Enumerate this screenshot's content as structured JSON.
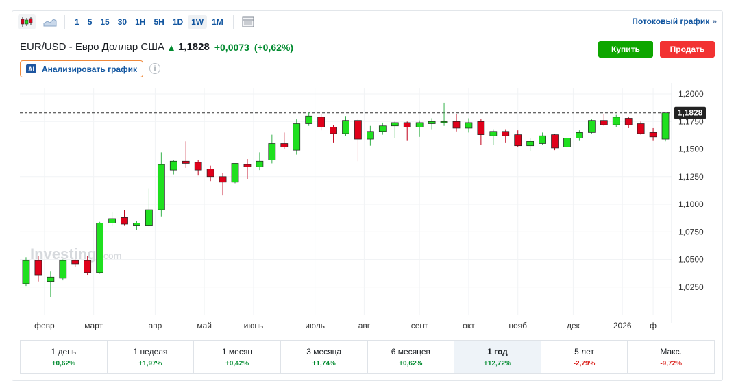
{
  "toolbar": {
    "timeframes": [
      "1",
      "5",
      "15",
      "30",
      "1H",
      "5H",
      "1D",
      "1W",
      "1M"
    ],
    "selected_timeframe": "1W",
    "stream_link": "Потоковый график",
    "stream_chevron": "»",
    "icons": [
      "candlestick-icon",
      "area-chart-icon",
      "table-icon"
    ]
  },
  "header": {
    "pair": "EUR/USD - Евро Доллар США",
    "price": "1,1828",
    "change": "+0,0073",
    "change_pct": "(+0,62%)",
    "buy_label": "Купить",
    "sell_label": "Продать",
    "ai_badge": "AI",
    "ai_label": "Анализировать график",
    "info_glyph": "i"
  },
  "colors": {
    "up": "#1fe01f",
    "down": "#e0001a",
    "up_text": "#008a2e",
    "down_text": "#d91e18",
    "link": "#1256a0",
    "buy": "#0ea600",
    "sell": "#f23232"
  },
  "chart_data": {
    "type": "candlestick",
    "watermark": "Investing",
    "watermark_suffix": ".com",
    "last_price_label": "1,1828",
    "last_price": 1.1828,
    "reference_line": 1.1755,
    "ylim": [
      1.0,
      1.205
    ],
    "y_ticks": [
      {
        "value": 1.2,
        "label": "1,2000"
      },
      {
        "value": 1.175,
        "label": "1,1750"
      },
      {
        "value": 1.15,
        "label": "1,1500"
      },
      {
        "value": 1.125,
        "label": "1,1250"
      },
      {
        "value": 1.1,
        "label": "1,1000"
      },
      {
        "value": 1.075,
        "label": "1,0750"
      },
      {
        "value": 1.05,
        "label": "1,0500"
      },
      {
        "value": 1.025,
        "label": "1,0250"
      }
    ],
    "x_ticks": [
      {
        "index": 1.5,
        "label": "февр"
      },
      {
        "index": 5.5,
        "label": "март"
      },
      {
        "index": 10.5,
        "label": "апр"
      },
      {
        "index": 14.5,
        "label": "май"
      },
      {
        "index": 18.5,
        "label": "июнь"
      },
      {
        "index": 23.5,
        "label": "июль"
      },
      {
        "index": 27.5,
        "label": "авг"
      },
      {
        "index": 32,
        "label": "сент"
      },
      {
        "index": 36,
        "label": "окт"
      },
      {
        "index": 40,
        "label": "нояб"
      },
      {
        "index": 44.5,
        "label": "дек"
      },
      {
        "index": 48.5,
        "label": "2026"
      },
      {
        "index": 51,
        "label": "ф"
      }
    ],
    "candles": [
      {
        "o": 1.028,
        "h": 1.052,
        "l": 1.026,
        "c": 1.049
      },
      {
        "o": 1.049,
        "h": 1.053,
        "l": 1.03,
        "c": 1.036
      },
      {
        "o": 1.03,
        "h": 1.039,
        "l": 1.016,
        "c": 1.034
      },
      {
        "o": 1.033,
        "h": 1.05,
        "l": 1.031,
        "c": 1.049
      },
      {
        "o": 1.049,
        "h": 1.05,
        "l": 1.043,
        "c": 1.046
      },
      {
        "o": 1.049,
        "h": 1.053,
        "l": 1.036,
        "c": 1.038
      },
      {
        "o": 1.038,
        "h": 1.084,
        "l": 1.037,
        "c": 1.083
      },
      {
        "o": 1.083,
        "h": 1.093,
        "l": 1.08,
        "c": 1.087
      },
      {
        "o": 1.088,
        "h": 1.095,
        "l": 1.081,
        "c": 1.082
      },
      {
        "o": 1.081,
        "h": 1.085,
        "l": 1.077,
        "c": 1.083
      },
      {
        "o": 1.081,
        "h": 1.114,
        "l": 1.08,
        "c": 1.095
      },
      {
        "o": 1.095,
        "h": 1.147,
        "l": 1.089,
        "c": 1.136
      },
      {
        "o": 1.131,
        "h": 1.14,
        "l": 1.127,
        "c": 1.139
      },
      {
        "o": 1.139,
        "h": 1.157,
        "l": 1.133,
        "c": 1.137
      },
      {
        "o": 1.138,
        "h": 1.14,
        "l": 1.126,
        "c": 1.131
      },
      {
        "o": 1.132,
        "h": 1.135,
        "l": 1.121,
        "c": 1.125
      },
      {
        "o": 1.125,
        "h": 1.128,
        "l": 1.108,
        "c": 1.12
      },
      {
        "o": 1.12,
        "h": 1.137,
        "l": 1.119,
        "c": 1.137
      },
      {
        "o": 1.136,
        "h": 1.141,
        "l": 1.123,
        "c": 1.134
      },
      {
        "o": 1.134,
        "h": 1.147,
        "l": 1.131,
        "c": 1.139
      },
      {
        "o": 1.14,
        "h": 1.163,
        "l": 1.137,
        "c": 1.155
      },
      {
        "o": 1.155,
        "h": 1.165,
        "l": 1.15,
        "c": 1.152
      },
      {
        "o": 1.149,
        "h": 1.177,
        "l": 1.145,
        "c": 1.173
      },
      {
        "o": 1.173,
        "h": 1.183,
        "l": 1.171,
        "c": 1.18
      },
      {
        "o": 1.179,
        "h": 1.182,
        "l": 1.167,
        "c": 1.17
      },
      {
        "o": 1.17,
        "h": 1.172,
        "l": 1.156,
        "c": 1.164
      },
      {
        "o": 1.164,
        "h": 1.18,
        "l": 1.162,
        "c": 1.176
      },
      {
        "o": 1.176,
        "h": 1.177,
        "l": 1.139,
        "c": 1.159
      },
      {
        "o": 1.159,
        "h": 1.171,
        "l": 1.153,
        "c": 1.166
      },
      {
        "o": 1.166,
        "h": 1.174,
        "l": 1.163,
        "c": 1.171
      },
      {
        "o": 1.171,
        "h": 1.175,
        "l": 1.16,
        "c": 1.174
      },
      {
        "o": 1.174,
        "h": 1.175,
        "l": 1.158,
        "c": 1.17
      },
      {
        "o": 1.17,
        "h": 1.176,
        "l": 1.161,
        "c": 1.174
      },
      {
        "o": 1.173,
        "h": 1.178,
        "l": 1.168,
        "c": 1.175
      },
      {
        "o": 1.174,
        "h": 1.192,
        "l": 1.171,
        "c": 1.175
      },
      {
        "o": 1.175,
        "h": 1.182,
        "l": 1.166,
        "c": 1.169
      },
      {
        "o": 1.169,
        "h": 1.178,
        "l": 1.165,
        "c": 1.174
      },
      {
        "o": 1.175,
        "h": 1.177,
        "l": 1.154,
        "c": 1.163
      },
      {
        "o": 1.162,
        "h": 1.168,
        "l": 1.154,
        "c": 1.166
      },
      {
        "o": 1.166,
        "h": 1.168,
        "l": 1.156,
        "c": 1.162
      },
      {
        "o": 1.163,
        "h": 1.167,
        "l": 1.152,
        "c": 1.153
      },
      {
        "o": 1.153,
        "h": 1.16,
        "l": 1.148,
        "c": 1.157
      },
      {
        "o": 1.155,
        "h": 1.165,
        "l": 1.154,
        "c": 1.162
      },
      {
        "o": 1.163,
        "h": 1.164,
        "l": 1.149,
        "c": 1.151
      },
      {
        "o": 1.152,
        "h": 1.161,
        "l": 1.151,
        "c": 1.16
      },
      {
        "o": 1.16,
        "h": 1.167,
        "l": 1.158,
        "c": 1.165
      },
      {
        "o": 1.165,
        "h": 1.177,
        "l": 1.164,
        "c": 1.176
      },
      {
        "o": 1.176,
        "h": 1.182,
        "l": 1.171,
        "c": 1.172
      },
      {
        "o": 1.172,
        "h": 1.181,
        "l": 1.17,
        "c": 1.179
      },
      {
        "o": 1.178,
        "h": 1.179,
        "l": 1.169,
        "c": 1.172
      },
      {
        "o": 1.173,
        "h": 1.175,
        "l": 1.163,
        "c": 1.164
      },
      {
        "o": 1.165,
        "h": 1.169,
        "l": 1.158,
        "c": 1.161
      },
      {
        "o": 1.159,
        "h": 1.183,
        "l": 1.157,
        "c": 1.1828
      }
    ]
  },
  "periods": [
    {
      "label": "1 день",
      "value": "+0,62%",
      "dir": "pos"
    },
    {
      "label": "1 неделя",
      "value": "+1,97%",
      "dir": "pos"
    },
    {
      "label": "1 месяц",
      "value": "+0,42%",
      "dir": "pos"
    },
    {
      "label": "3 месяца",
      "value": "+1,74%",
      "dir": "pos"
    },
    {
      "label": "6 месяцев",
      "value": "+0,62%",
      "dir": "pos"
    },
    {
      "label": "1 год",
      "value": "+12,72%",
      "dir": "pos",
      "selected": true
    },
    {
      "label": "5 лет",
      "value": "-2,79%",
      "dir": "neg"
    },
    {
      "label": "Макс.",
      "value": "-9,72%",
      "dir": "neg"
    }
  ]
}
